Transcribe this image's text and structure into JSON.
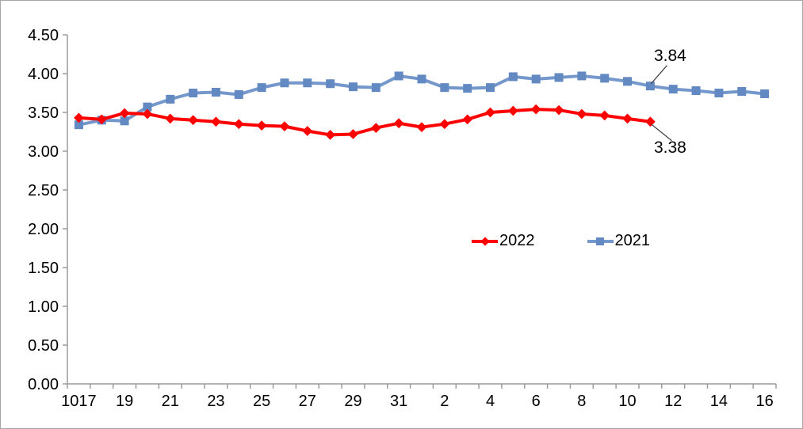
{
  "chart_data": {
    "type": "line",
    "title": "",
    "xlabel": "",
    "ylabel": "",
    "ylim": [
      0,
      4.5
    ],
    "y_tick_step": 0.5,
    "y_tick_labels": [
      "0.00",
      "0.50",
      "1.00",
      "1.50",
      "2.00",
      "2.50",
      "3.00",
      "3.50",
      "4.00",
      "4.50"
    ],
    "x_count": 31,
    "x_tick_labels": [
      "1017",
      "19",
      "21",
      "23",
      "25",
      "27",
      "29",
      "31",
      "2",
      "4",
      "6",
      "8",
      "10",
      "12",
      "14",
      "16"
    ],
    "x_tick_label_indices": [
      0,
      2,
      4,
      6,
      8,
      10,
      12,
      14,
      16,
      18,
      20,
      22,
      24,
      26,
      28,
      30
    ],
    "grid": false,
    "legend_position": "center",
    "series": [
      {
        "name": "2021",
        "color": "#7598cc",
        "marker_color": "#6389c2",
        "marker": "square",
        "values": [
          3.34,
          3.4,
          3.39,
          3.57,
          3.67,
          3.75,
          3.76,
          3.73,
          3.82,
          3.88,
          3.88,
          3.87,
          3.83,
          3.82,
          3.97,
          3.93,
          3.82,
          3.81,
          3.82,
          3.96,
          3.93,
          3.95,
          3.97,
          3.94,
          3.9,
          3.84,
          3.8,
          3.78,
          3.75,
          3.77,
          3.74
        ]
      },
      {
        "name": "2022",
        "color": "#ff0000",
        "marker_color": "#ff0000",
        "marker": "diamond",
        "values": [
          3.43,
          3.41,
          3.49,
          3.48,
          3.42,
          3.4,
          3.38,
          3.35,
          3.33,
          3.32,
          3.26,
          3.21,
          3.22,
          3.3,
          3.36,
          3.31,
          3.35,
          3.41,
          3.5,
          3.52,
          3.54,
          3.53,
          3.48,
          3.46,
          3.42,
          3.38
        ]
      }
    ],
    "legend_order": [
      "2022",
      "2021"
    ],
    "annotations": [
      {
        "text": "3.84",
        "series": "2021",
        "point_index": 25,
        "side": "above"
      },
      {
        "text": "3.38",
        "series": "2022",
        "point_index": 25,
        "side": "below"
      }
    ],
    "axis_color": "#9c9c9c",
    "text_color": "#000000",
    "leader_line_color": "#404040"
  }
}
